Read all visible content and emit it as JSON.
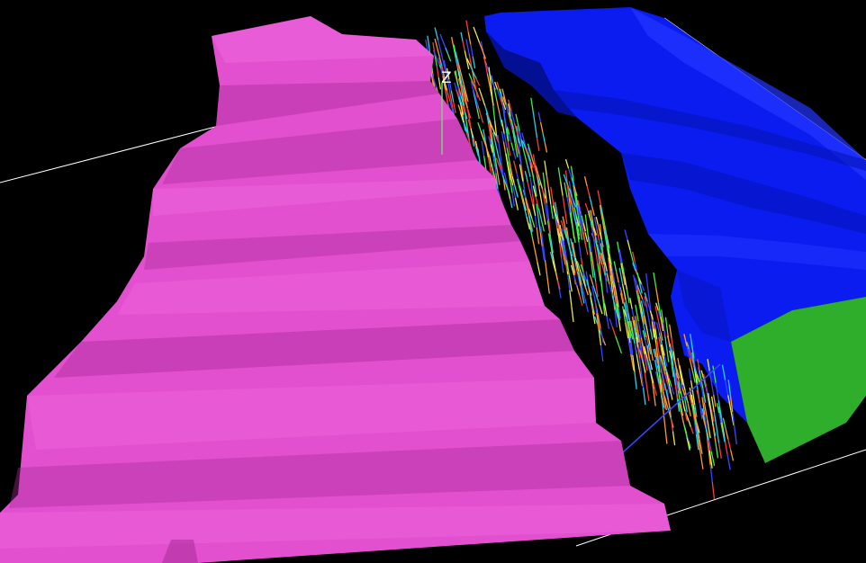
{
  "viewport": {
    "axis_label": "Z",
    "colors": {
      "background": "#000000",
      "magenta_solid": "#e24fcf",
      "magenta_dark": "#a82c98",
      "magenta_light": "#f06ee0",
      "blue_solid": "#0a1cf0",
      "blue_dark": "#0514b8",
      "blue_light": "#2336ff",
      "green_face": "#2fae2b",
      "box_edge": "#ffffff",
      "axis_line": "#7cd07a",
      "drillhole_colors": [
        "#3a46ff",
        "#22d3e6",
        "#3cf04a",
        "#e9e94a",
        "#ff9a2a",
        "#ff3a3a"
      ]
    }
  }
}
